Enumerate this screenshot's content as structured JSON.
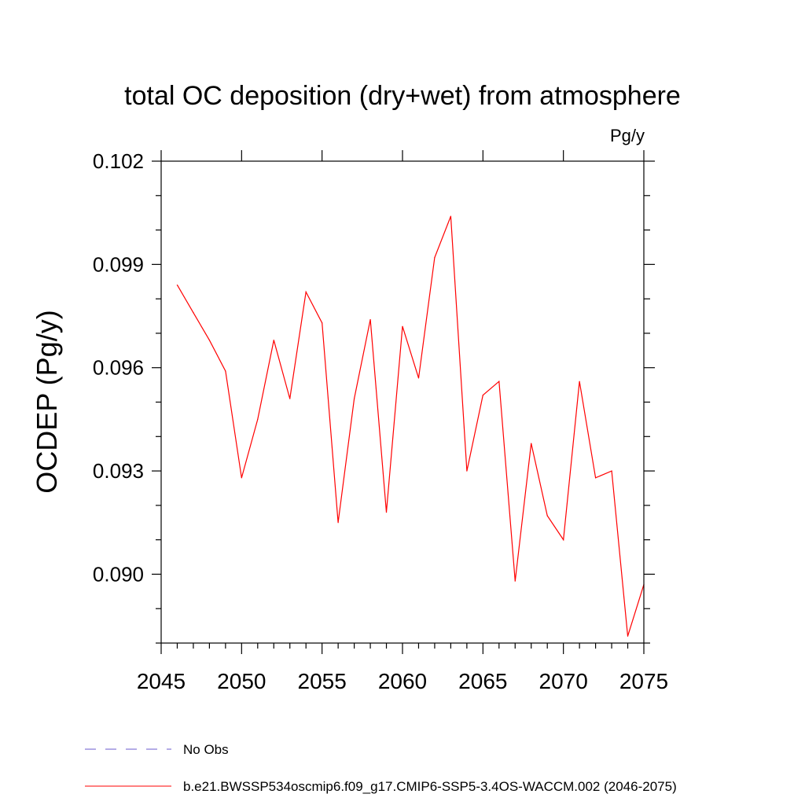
{
  "chart_data": {
    "type": "line",
    "title": "total OC deposition (dry+wet) from atmosphere",
    "units": "Pg/y",
    "ylabel": "OCDEP  (Pg/y)",
    "xlabel": "",
    "xlim": [
      2045,
      2075
    ],
    "ylim": [
      0.088,
      0.102
    ],
    "x_ticks": [
      2045,
      2050,
      2055,
      2060,
      2065,
      2070,
      2075
    ],
    "x_tick_labels": [
      "2045",
      "2050",
      "2055",
      "2060",
      "2065",
      "2070",
      "2075"
    ],
    "y_ticks": [
      0.09,
      0.093,
      0.096,
      0.099,
      0.102
    ],
    "y_tick_labels": [
      "0.090",
      "0.093",
      "0.096",
      "0.099",
      "0.102"
    ],
    "y_minor_ticks": [
      0.088,
      0.089,
      0.091,
      0.092,
      0.094,
      0.095,
      0.097,
      0.098,
      0.1,
      0.101
    ],
    "x_minor_ticks": [
      2046,
      2047,
      2048,
      2049,
      2051,
      2052,
      2053,
      2054,
      2056,
      2057,
      2058,
      2059,
      2061,
      2062,
      2063,
      2064,
      2066,
      2067,
      2068,
      2069,
      2071,
      2072,
      2073,
      2074
    ],
    "series": [
      {
        "name": "No Obs",
        "color": "#6a5acd",
        "dash": "dashed",
        "x": [],
        "values": []
      },
      {
        "name": "b.e21.BWSSP534oscmip6.f09_g17.CMIP6-SSP5-3.4OS-WACCM.002 (2046-2075)",
        "color": "#ff0000",
        "dash": "solid",
        "x": [
          2046,
          2047,
          2048,
          2049,
          2050,
          2051,
          2052,
          2053,
          2054,
          2055,
          2056,
          2057,
          2058,
          2059,
          2060,
          2061,
          2062,
          2063,
          2064,
          2065,
          2066,
          2067,
          2068,
          2069,
          2070,
          2071,
          2072,
          2073,
          2074,
          2075
        ],
        "values": [
          0.0984,
          0.0976,
          0.0968,
          0.0959,
          0.0928,
          0.0945,
          0.0968,
          0.0951,
          0.0982,
          0.0973,
          0.0915,
          0.0951,
          0.0974,
          0.0918,
          0.0972,
          0.0957,
          0.0992,
          0.1004,
          0.093,
          0.0952,
          0.0956,
          0.0898,
          0.0938,
          0.0917,
          0.091,
          0.0956,
          0.0928,
          0.093,
          0.0882,
          0.0897
        ]
      }
    ],
    "legend": [
      {
        "label": "No Obs",
        "color": "#6a5acd",
        "dash": "dashed"
      },
      {
        "label": "b.e21.BWSSP534oscmip6.f09_g17.CMIP6-SSP5-3.4OS-WACCM.002 (2046-2075)",
        "color": "#ff0000",
        "dash": "solid"
      }
    ],
    "legend_placement": "bottom-left",
    "grid": false
  }
}
